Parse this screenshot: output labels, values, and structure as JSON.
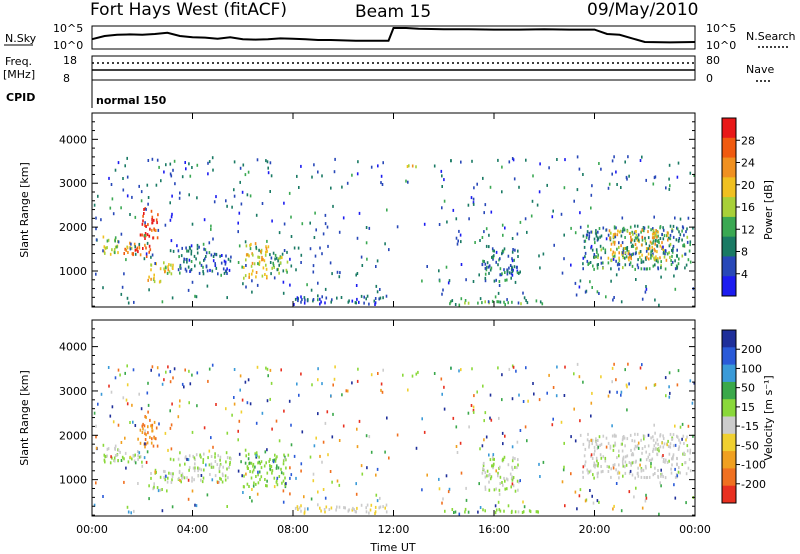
{
  "header": {
    "station": "Fort Hays West (fitACF)",
    "beam": "Beam 15",
    "date": "09/May/2010"
  },
  "panels": {
    "nsky": {
      "label": "N.Sky",
      "right_label": "N.Search",
      "top_tick": "10^5",
      "bottom_tick": "10^0",
      "right_top_tick": "10^5",
      "right_bottom_tick": "10^0"
    },
    "freq": {
      "label": "Freq.",
      "unit": "[MHz]",
      "right_label": "Nave",
      "left_top_tick": "18",
      "left_bottom_tick": "8",
      "right_top_tick": "80",
      "right_bottom_tick": "0"
    },
    "cpid": {
      "label": "CPID",
      "program": "normal 150"
    }
  },
  "axes": {
    "x_label": "Time UT",
    "x_ticks": [
      "00:00",
      "04:00",
      "08:00",
      "12:00",
      "16:00",
      "20:00",
      "00:00"
    ],
    "y_label": "Slant Range [km]",
    "y_ticks": [
      "1000",
      "2000",
      "3000",
      "4000"
    ]
  },
  "colorbars": {
    "power": {
      "title": "Power [dB]",
      "ticks": [
        "4",
        "8",
        "12",
        "16",
        "20",
        "24",
        "28"
      ],
      "colors": [
        "#1c1cf0",
        "#2848b8",
        "#1a7a64",
        "#3aa852",
        "#a8d038",
        "#f0c020",
        "#f09020",
        "#f05a10",
        "#e81818"
      ]
    },
    "velocity": {
      "title": "Velocity [m s⁻¹]",
      "ticks": [
        "200",
        "100",
        "50",
        "15",
        "-15",
        "-50",
        "-100",
        "-200"
      ],
      "colors": [
        "#1f2f9a",
        "#2a5ad8",
        "#3a9ad8",
        "#3aa84a",
        "#8ad83a",
        "#cccccc",
        "#f0d030",
        "#f0a020",
        "#f07020",
        "#e83020"
      ]
    }
  },
  "chart_data": [
    {
      "type": "line",
      "name": "nsky-nsearch",
      "title": "",
      "x": [
        0,
        0.5,
        1,
        1.5,
        2,
        2.5,
        3,
        3.5,
        4,
        4.5,
        5,
        5.5,
        6,
        6.5,
        7,
        7.5,
        8,
        8.5,
        9,
        9.5,
        10,
        10.5,
        11,
        11.5,
        11.8,
        12,
        12.5,
        13,
        14,
        15,
        16,
        17,
        18,
        19,
        20,
        20.5,
        21,
        22,
        23,
        24
      ],
      "series": [
        {
          "name": "N.Sky",
          "values": [
            2.2,
            3.0,
            3.3,
            3.4,
            3.3,
            3.5,
            3.8,
            3.0,
            2.7,
            2.6,
            2.3,
            2.7,
            2.2,
            2.1,
            2.2,
            2.4,
            2.3,
            2.2,
            2.0,
            2.0,
            1.9,
            1.8,
            1.8,
            1.8,
            1.8,
            5.0,
            5.0,
            4.8,
            4.7,
            4.7,
            4.6,
            4.6,
            4.7,
            4.6,
            4.6,
            3.5,
            3.3,
            1.5,
            1.4,
            1.5
          ]
        }
      ],
      "ylim": [
        0,
        5
      ]
    },
    {
      "type": "line",
      "name": "freq-nave",
      "title": "",
      "series": [
        {
          "name": "Freq.",
          "values": [
            10,
            10
          ]
        },
        {
          "name": "Nave",
          "values": [
            40,
            40
          ]
        }
      ],
      "x": [
        0,
        24
      ],
      "xlim": [
        0,
        24
      ]
    },
    {
      "type": "heatmap",
      "name": "power",
      "title": "",
      "xlabel": "Time UT",
      "ylabel": "Slant Range [km]",
      "xlim": [
        0,
        24
      ],
      "ylim": [
        180,
        4600
      ],
      "colorbar_label": "Power [dB]",
      "colorbar_range": [
        0,
        32
      ],
      "regions": [
        {
          "t": [
            0.3,
            1.0
          ],
          "r": [
            1300,
            1800
          ],
          "level": 16
        },
        {
          "t": [
            1.0,
            1.6
          ],
          "r": [
            1300,
            1600
          ],
          "level": 22
        },
        {
          "t": [
            1.6,
            2.4
          ],
          "r": [
            1250,
            1600
          ],
          "level": 26
        },
        {
          "t": [
            1.8,
            2.6
          ],
          "r": [
            1700,
            2400
          ],
          "level": 28
        },
        {
          "t": [
            2.2,
            3.2
          ],
          "r": [
            700,
            1200
          ],
          "level": 18
        },
        {
          "t": [
            3.4,
            4.5
          ],
          "r": [
            900,
            1600
          ],
          "level": 8
        },
        {
          "t": [
            4.5,
            5.5
          ],
          "r": [
            900,
            1400
          ],
          "level": 6
        },
        {
          "t": [
            6.0,
            7.0
          ],
          "r": [
            800,
            1600
          ],
          "level": 18
        },
        {
          "t": [
            7.0,
            7.8
          ],
          "r": [
            900,
            1400
          ],
          "level": 14
        },
        {
          "t": [
            8.0,
            11.8
          ],
          "r": [
            200,
            400
          ],
          "level": 6
        },
        {
          "t": [
            12.3,
            13.0
          ],
          "r": [
            3300,
            3400
          ],
          "level": 20
        },
        {
          "t": [
            14.0,
            18.0
          ],
          "r": [
            200,
            300
          ],
          "level": 12
        },
        {
          "t": [
            15.5,
            17.0
          ],
          "r": [
            700,
            1500
          ],
          "level": 8
        },
        {
          "t": [
            19.5,
            23.8
          ],
          "r": [
            1000,
            2000
          ],
          "level": 10
        },
        {
          "t": [
            20.5,
            23.0
          ],
          "r": [
            1200,
            1900
          ],
          "level": 20
        }
      ]
    },
    {
      "type": "heatmap",
      "name": "velocity",
      "title": "",
      "xlabel": "Time UT",
      "ylabel": "Slant Range [km]",
      "xlim": [
        0,
        24
      ],
      "ylim": [
        180,
        4600
      ],
      "colorbar_label": "Velocity [m s⁻¹]",
      "colorbar_range": [
        -250,
        250
      ],
      "regions": [
        {
          "t": [
            0.3,
            1.0
          ],
          "r": [
            1300,
            1800
          ],
          "level": 0
        },
        {
          "t": [
            1.0,
            2.0
          ],
          "r": [
            1300,
            1600
          ],
          "level": 0
        },
        {
          "t": [
            1.8,
            2.6
          ],
          "r": [
            1700,
            2400
          ],
          "level": -150
        },
        {
          "t": [
            2.2,
            3.2
          ],
          "r": [
            700,
            1200
          ],
          "level": 0
        },
        {
          "t": [
            3.4,
            5.5
          ],
          "r": [
            900,
            1600
          ],
          "level": 0
        },
        {
          "t": [
            6.0,
            7.8
          ],
          "r": [
            800,
            1600
          ],
          "level": 30
        },
        {
          "t": [
            8.0,
            11.8
          ],
          "r": [
            200,
            400
          ],
          "level": -40
        },
        {
          "t": [
            12.3,
            13.0
          ],
          "r": [
            3300,
            3400
          ],
          "level": 40
        },
        {
          "t": [
            14.0,
            18.0
          ],
          "r": [
            200,
            300
          ],
          "level": 30
        },
        {
          "t": [
            15.5,
            17.0
          ],
          "r": [
            700,
            1500
          ],
          "level": 0
        },
        {
          "t": [
            19.5,
            23.8
          ],
          "r": [
            1000,
            2000
          ],
          "level": -20
        }
      ]
    }
  ]
}
